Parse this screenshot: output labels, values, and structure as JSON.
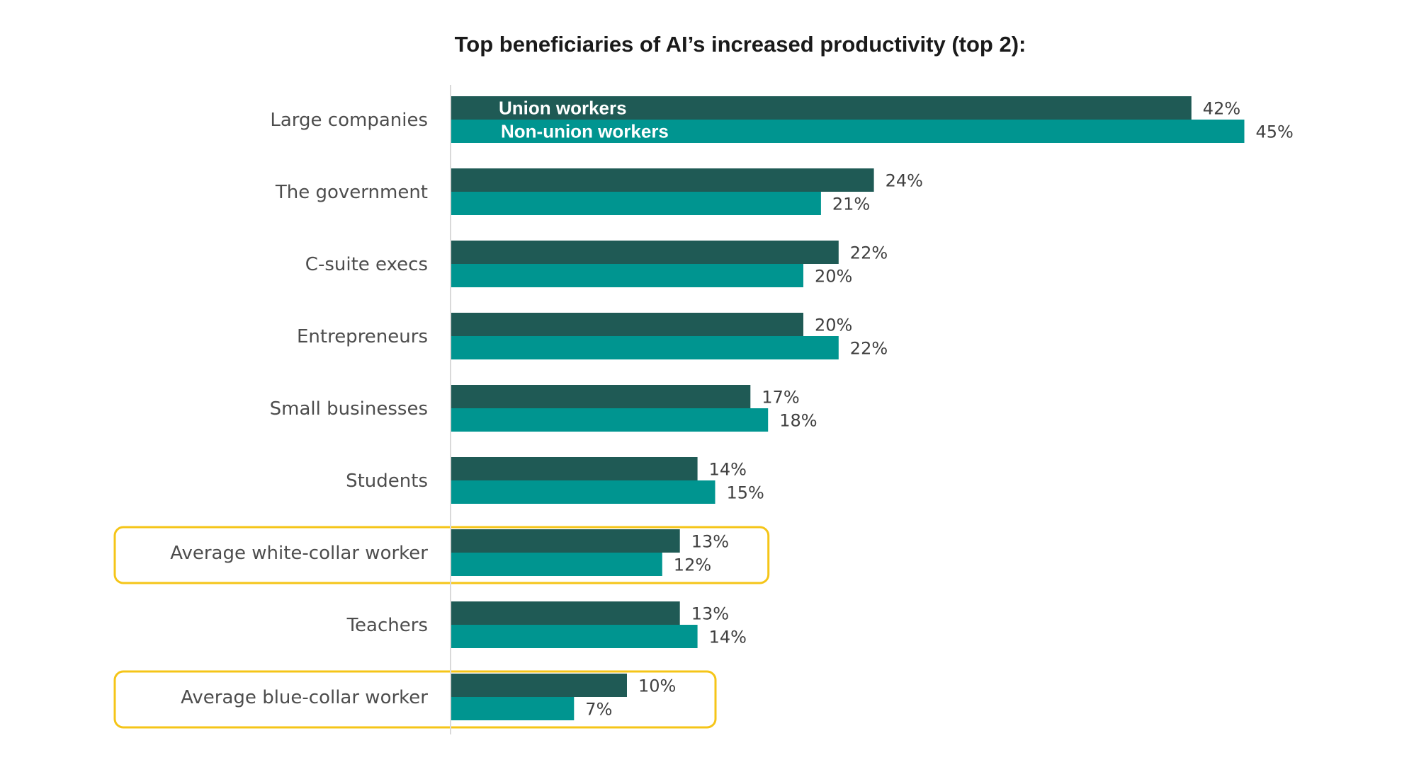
{
  "chart_data": {
    "type": "bar",
    "orientation": "horizontal",
    "title": "Top beneficiaries of AI’s increased productivity (top 2):",
    "categories": [
      "Large companies",
      "The government",
      "C-suite execs",
      "Entrepreneurs",
      "Small businesses",
      "Students",
      "Average white-collar worker",
      "Teachers",
      "Average blue-collar worker"
    ],
    "series": [
      {
        "name": "Union workers",
        "values": [
          42,
          24,
          22,
          20,
          17,
          14,
          13,
          13,
          10
        ],
        "color": "#1f5a55"
      },
      {
        "name": "Non-union workers",
        "values": [
          45,
          21,
          20,
          22,
          18,
          15,
          12,
          14,
          7
        ],
        "color": "#009590"
      }
    ],
    "value_suffix": "%",
    "xlim": [
      0,
      50
    ],
    "grid": false,
    "legend_placement": "inside first bar pair",
    "highlighted_categories": [
      "Average white-collar worker",
      "Average blue-collar worker"
    ],
    "highlight_color": "#f5c518"
  }
}
